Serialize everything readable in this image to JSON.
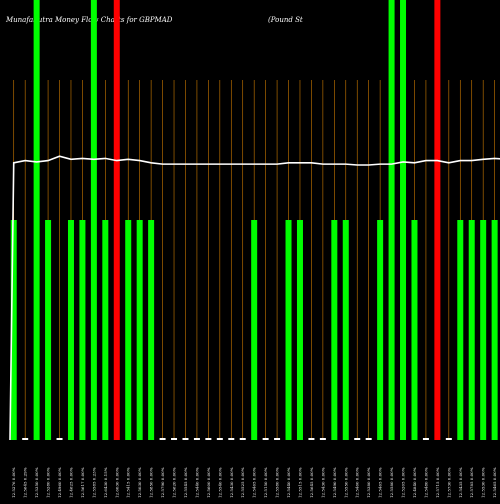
{
  "chart_data": {
    "type": "bar",
    "title": "MunafaSutra  Money Flow  Charts for GBPMAD",
    "subtitle": "(Pound St",
    "xlabel": "",
    "ylabel": "",
    "grid": true,
    "background_color": "#000000",
    "grid_color": "#cc7a00",
    "colors": {
      "up": "#00ff00",
      "down": "#ff0000",
      "flat": "#ffffff",
      "line": "#ffffff"
    },
    "ylim": [
      0,
      100
    ],
    "categories": [
      "12.5276 0.00%",
      "12.5645 0.29%",
      "12.5350 0.00%",
      "12.5280 0.00%",
      "12.4960 0.00%",
      "12.4625 0.00%",
      "12.5617 0.00%",
      "12.5585 0.23%",
      "12.6430 0.15%",
      "12.6030 0.00%",
      "12.5415 0.00%",
      "12.5030 0.00%",
      "12.5850 0.00%",
      "12.5790 0.00%",
      "12.5620 0.00%",
      "12.5545 0.00%",
      "12.5440 0.00%",
      "12.5600 0.00%",
      "12.5540 0.00%",
      "12.5430 0.00%",
      "12.5525 0.00%",
      "12.5465 0.00%",
      "12.5150 0.00%",
      "12.5580 0.00%",
      "12.5440 0.00%",
      "12.5515 0.00%",
      "12.5645 0.00%",
      "12.5430 0.00%",
      "12.5490 0.00%",
      "12.5550 0.00%",
      "12.5460 0.00%",
      "12.5380 0.00%",
      "12.5465 0.00%",
      "12.5580 0.00%",
      "12.5205 0.00%",
      "12.4840 0.00%",
      "12.5480 0.00%",
      "12.5715 0.00%",
      "12.5730 0.00%",
      "12.5435 0.00%",
      "12.5785 0.00%",
      "12.5530 0.00%",
      "12.5465 0.00%",
      "12.5700 0.00%"
    ],
    "series": [
      {
        "values": [
          50,
          0,
          100,
          50,
          0,
          50,
          50,
          100,
          50,
          100,
          50,
          50,
          50,
          0,
          0,
          0,
          0,
          0,
          0,
          0,
          0,
          50,
          0,
          0,
          50,
          50,
          0,
          0,
          50,
          50,
          0,
          0,
          50,
          100,
          100,
          50,
          0,
          100,
          0,
          50,
          50,
          50,
          50,
          50
        ],
        "directions": [
          "up",
          "flat",
          "up",
          "up",
          "flat",
          "up",
          "up",
          "up",
          "up",
          "down",
          "up",
          "up",
          "up",
          "flat",
          "flat",
          "flat",
          "flat",
          "flat",
          "flat",
          "flat",
          "flat",
          "up",
          "flat",
          "flat",
          "up",
          "up",
          "flat",
          "flat",
          "up",
          "up",
          "flat",
          "flat",
          "up",
          "up",
          "up",
          "up",
          "flat",
          "down",
          "flat",
          "up",
          "up",
          "up",
          "up",
          "down"
        ]
      },
      {
        "type": "line",
        "values": [
          63,
          63.5,
          63.2,
          63.5,
          64.5,
          63.8,
          64,
          63.8,
          64,
          63.5,
          63.8,
          63.5,
          63,
          62.7,
          62.7,
          62.7,
          62.7,
          62.7,
          62.7,
          62.7,
          62.7,
          62.7,
          62.7,
          62.7,
          63,
          63,
          63,
          62.7,
          62.7,
          62.7,
          62.5,
          62.5,
          62.7,
          62.7,
          63.2,
          63,
          63.5,
          63.5,
          63,
          63.5,
          63.5,
          63.8,
          64,
          63.8
        ]
      }
    ]
  }
}
